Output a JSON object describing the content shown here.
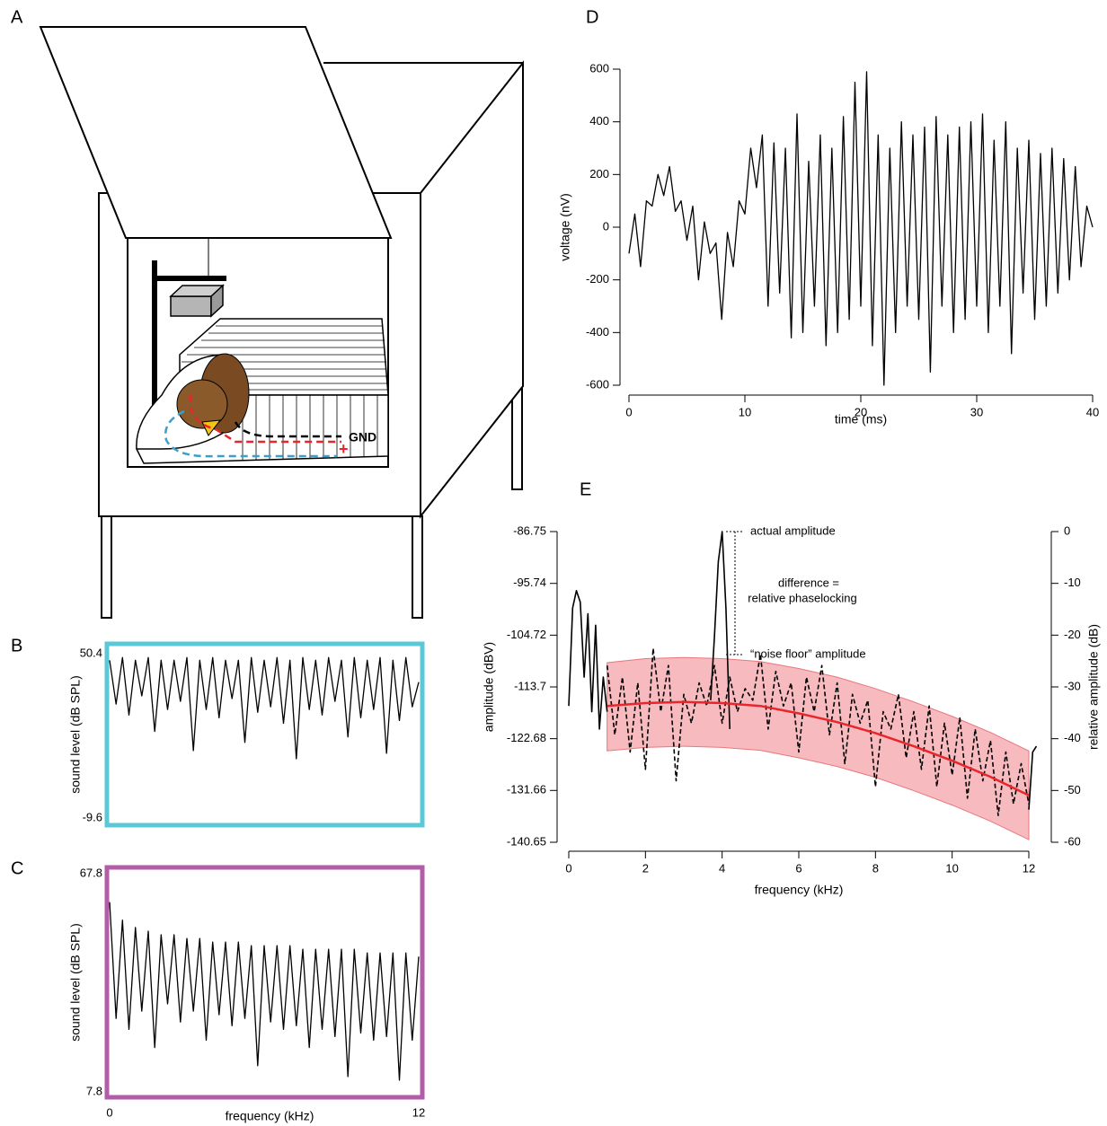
{
  "diagram": {
    "panel_label": "A",
    "ground_label": "GND",
    "plus_label": "+"
  },
  "chart_data": [
    {
      "type": "line",
      "panel_label": "B",
      "ylabel": "sound level (dB SPL)",
      "color": "#000000",
      "frame_color": "#5bc8d8",
      "xlim": [
        0,
        12
      ],
      "ylim": [
        -9.6,
        50.4
      ],
      "yticks": [
        -9.6,
        50.4
      ],
      "x": [
        0,
        0.25,
        0.5,
        0.75,
        1,
        1.25,
        1.5,
        1.75,
        2,
        2.25,
        2.5,
        2.75,
        3,
        3.25,
        3.5,
        3.75,
        4,
        4.25,
        4.5,
        4.75,
        5,
        5.25,
        5.5,
        5.75,
        6,
        6.25,
        6.5,
        6.75,
        7,
        7.25,
        7.5,
        7.75,
        8,
        8.25,
        8.5,
        8.75,
        9,
        9.25,
        9.5,
        9.75,
        10,
        10.25,
        10.5,
        10.75,
        11,
        11.25,
        11.5,
        11.75,
        12
      ],
      "values": [
        48,
        32,
        49,
        28,
        48,
        35,
        49,
        22,
        48,
        30,
        48,
        33,
        49,
        15,
        48,
        30,
        49,
        27,
        48,
        34,
        48,
        18,
        49,
        29,
        48,
        31,
        49,
        25,
        48,
        12,
        49,
        30,
        48,
        28,
        49,
        33,
        48,
        20,
        49,
        27,
        48,
        30,
        49,
        14,
        48,
        26,
        49,
        31,
        40
      ]
    },
    {
      "type": "line",
      "panel_label": "C",
      "ylabel": "sound level (dB SPL)",
      "xlabel": "frequency (kHz)",
      "color": "#000000",
      "frame_color": "#b35ca8",
      "xlim": [
        0,
        12
      ],
      "ylim": [
        7.8,
        67.8
      ],
      "yticks": [
        7.8,
        67.8
      ],
      "xticks": [
        0,
        12
      ],
      "x": [
        0,
        0.25,
        0.5,
        0.75,
        1,
        1.25,
        1.5,
        1.75,
        2,
        2.25,
        2.5,
        2.75,
        3,
        3.25,
        3.5,
        3.75,
        4,
        4.25,
        4.5,
        4.75,
        5,
        5.25,
        5.5,
        5.75,
        6,
        6.25,
        6.5,
        6.75,
        7,
        7.25,
        7.5,
        7.75,
        8,
        8.25,
        8.5,
        8.75,
        9,
        9.25,
        9.5,
        9.75,
        10,
        10.25,
        10.5,
        10.75,
        11,
        11.25,
        11.5,
        11.75,
        12
      ],
      "values": [
        60,
        28,
        55,
        25,
        53,
        30,
        52,
        20,
        51,
        32,
        51,
        27,
        50,
        30,
        50,
        22,
        49,
        29,
        49,
        26,
        49,
        28,
        48,
        15,
        48,
        27,
        48,
        25,
        48,
        26,
        47,
        20,
        47,
        25,
        47,
        23,
        47,
        12,
        47,
        24,
        46,
        22,
        46,
        23,
        46,
        11,
        46,
        22,
        45
      ]
    },
    {
      "type": "line",
      "panel_label": "D",
      "xlabel": "time (ms)",
      "ylabel": "voltage (nV)",
      "color": "#000000",
      "xlim": [
        0,
        40
      ],
      "ylim": [
        -600,
        600
      ],
      "xticks": [
        0,
        10,
        20,
        30,
        40
      ],
      "yticks": [
        -600,
        -400,
        -200,
        0,
        200,
        400,
        600
      ],
      "x": [
        0,
        0.5,
        1,
        1.5,
        2,
        2.5,
        3,
        3.5,
        4,
        4.5,
        5,
        5.5,
        6,
        6.5,
        7,
        7.5,
        8,
        8.5,
        9,
        9.5,
        10,
        10.5,
        11,
        11.5,
        12,
        12.5,
        13,
        13.5,
        14,
        14.5,
        15,
        15.5,
        16,
        16.5,
        17,
        17.5,
        18,
        18.5,
        19,
        19.5,
        20,
        20.5,
        21,
        21.5,
        22,
        22.5,
        23,
        23.5,
        24,
        24.5,
        25,
        25.5,
        26,
        26.5,
        27,
        27.5,
        28,
        28.5,
        29,
        29.5,
        30,
        30.5,
        31,
        31.5,
        32,
        32.5,
        33,
        33.5,
        34,
        34.5,
        35,
        35.5,
        36,
        36.5,
        37,
        37.5,
        38,
        38.5,
        39,
        39.5,
        40
      ],
      "values": [
        -100,
        50,
        -150,
        100,
        80,
        200,
        120,
        230,
        60,
        100,
        -50,
        80,
        -200,
        20,
        -100,
        -60,
        -350,
        -20,
        -150,
        100,
        50,
        300,
        150,
        350,
        -300,
        320,
        -250,
        300,
        -420,
        430,
        -400,
        250,
        -300,
        350,
        -450,
        300,
        -400,
        420,
        -350,
        550,
        -300,
        590,
        -450,
        350,
        -600,
        300,
        -400,
        400,
        -300,
        350,
        -350,
        380,
        -550,
        420,
        -300,
        350,
        -400,
        380,
        -350,
        400,
        -300,
        430,
        -400,
        330,
        -300,
        400,
        -480,
        300,
        -250,
        330,
        -350,
        280,
        -300,
        300,
        -250,
        260,
        -200,
        230,
        -150,
        80,
        0
      ]
    },
    {
      "type": "line",
      "panel_label": "E",
      "xlabel": "frequency (kHz)",
      "ylabel": "amplitude (dBV)",
      "y2label": "relative amplitude (dB)",
      "xlim": [
        0,
        12
      ],
      "ylim": [
        -140.65,
        -86.75
      ],
      "y2lim": [
        -60,
        0
      ],
      "xticks": [
        0,
        2,
        4,
        6,
        8,
        10,
        12
      ],
      "yticks": [
        -140.65,
        -131.66,
        -122.68,
        -113.7,
        -104.72,
        -95.74,
        -86.75
      ],
      "y2ticks": [
        -60,
        -50,
        -40,
        -30,
        -20,
        -10,
        0
      ],
      "annotations": [
        "actual amplitude",
        "difference =",
        "relative phaselocking",
        "“noise floor” amplitude"
      ],
      "band": {
        "color": "#f4a3a8",
        "x": [
          1,
          2,
          3,
          4,
          5,
          6,
          7,
          8,
          9,
          10,
          11,
          12
        ],
        "upper": [
          -109.5,
          -108.8,
          -108.6,
          -108.8,
          -109.3,
          -110.5,
          -112,
          -114,
          -116.3,
          -118.8,
          -121.6,
          -124.8
        ],
        "lower": [
          -124.8,
          -124.2,
          -124,
          -124.2,
          -124.7,
          -126,
          -127.5,
          -129.4,
          -131.7,
          -134.2,
          -137,
          -140.2
        ]
      },
      "series": [
        {
          "color": "#000000",
          "dash": false,
          "x": [
            0,
            0.1,
            0.2,
            0.3,
            0.4,
            0.5,
            0.6,
            0.7,
            0.8,
            0.9,
            1,
            null,
            3.7,
            3.8,
            3.9,
            4,
            4.1,
            4.2,
            null,
            12,
            12.1,
            12.2
          ],
          "values": [
            -117,
            -100,
            -97,
            -99,
            -112,
            -101,
            -118,
            -103,
            -121,
            -112,
            -118,
            null,
            -116,
            -105,
            -92,
            -86.75,
            -100,
            -121,
            null,
            -135,
            -125,
            -124
          ]
        },
        {
          "color": "#000000",
          "dash": true,
          "x": [
            1,
            1.2,
            1.4,
            1.6,
            1.8,
            2,
            2.2,
            2.4,
            2.6,
            2.8,
            3,
            3.2,
            3.4,
            3.6,
            3.8,
            4,
            4.2,
            4.4,
            4.6,
            4.8,
            5,
            5.2,
            5.4,
            5.6,
            5.8,
            6,
            6.2,
            6.4,
            6.6,
            6.8,
            7,
            7.2,
            7.4,
            7.6,
            7.8,
            8,
            8.2,
            8.4,
            8.6,
            8.8,
            9,
            9.2,
            9.4,
            9.6,
            9.8,
            10,
            10.2,
            10.4,
            10.6,
            10.8,
            11,
            11.2,
            11.4,
            11.6,
            11.8,
            12
          ],
          "values": [
            -110,
            -122,
            -112,
            -125,
            -113,
            -128,
            -107,
            -118,
            -110,
            -130,
            -115,
            -120,
            -113,
            -117,
            -110,
            -120,
            -112,
            -118,
            -114,
            -116,
            -108,
            -121,
            -111,
            -117,
            -113,
            -125,
            -112,
            -118,
            -110,
            -122,
            -113,
            -127,
            -115,
            -120,
            -116,
            -131,
            -118,
            -121,
            -115,
            -126,
            -118,
            -128,
            -117,
            -131,
            -120,
            -129,
            -119,
            -133,
            -121,
            -130,
            -123,
            -136,
            -125,
            -134,
            -127,
            -134
          ]
        },
        {
          "color": "#e8262b",
          "dash": false,
          "x": [
            1,
            2,
            3,
            4,
            5,
            6,
            7,
            8,
            9,
            10,
            11,
            12
          ],
          "values": [
            -117,
            -116.5,
            -116.3,
            -116.5,
            -117,
            -118.3,
            -119.8,
            -121.7,
            -124,
            -126.5,
            -129.3,
            -132.5
          ]
        }
      ]
    }
  ]
}
